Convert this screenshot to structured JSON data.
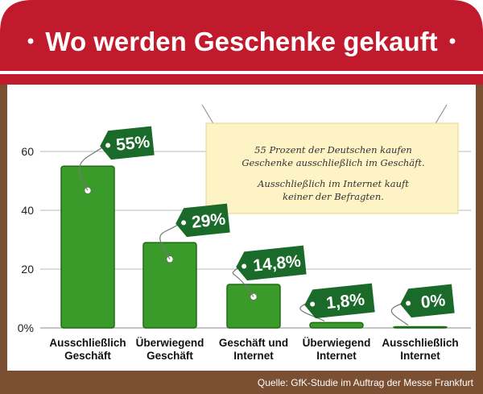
{
  "title": "Wo werden Geschenke gekauft",
  "note": {
    "lines": [
      "55 Prozent der Deutschen kaufen",
      "Geschenke ausschließlich im Geschäft.",
      "Ausschließlich im Internet kauft",
      "keiner der Befragten."
    ]
  },
  "source": "Quelle: GfK-Studie im Auftrag der Messe Frankfurt",
  "colors": {
    "awning": "#c01a2c",
    "awning_dark": "#8f0f1c",
    "bar": "#3a9a2a",
    "bar_dark": "#1f6a15",
    "tag": "#1a6b2a",
    "post": "#7a4f32",
    "note_bg": "#fdf3c4"
  },
  "chart_data": {
    "type": "bar",
    "categories": [
      [
        "Ausschließlich",
        "Geschäft"
      ],
      [
        "Überwiegend",
        "Geschäft"
      ],
      [
        "Geschäft und",
        "Internet"
      ],
      [
        "Überwiegend",
        "Internet"
      ],
      [
        "Ausschließlich",
        "Internet"
      ]
    ],
    "values": [
      55,
      29,
      14.8,
      1.8,
      0
    ],
    "value_labels": [
      "55%",
      "29%",
      "14,8%",
      "1,8%",
      "0%"
    ],
    "yticks": [
      "0%",
      "20",
      "40",
      "60"
    ],
    "ylim": [
      0,
      60
    ],
    "grid": true
  }
}
